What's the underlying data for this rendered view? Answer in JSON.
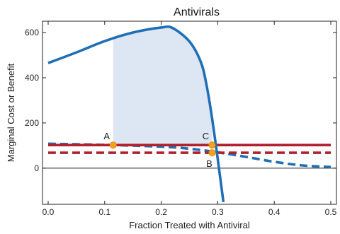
{
  "chart_data": {
    "type": "line",
    "title": "Antivirals",
    "xlabel": "Fraction Treated with Antiviral",
    "ylabel": "Marginal Cost or Benefit",
    "xlim": [
      -0.01,
      0.51
    ],
    "ylim": [
      -160,
      650
    ],
    "xticks": [
      0.0,
      0.1,
      0.2,
      0.3,
      0.4,
      0.5
    ],
    "xtick_labels": [
      "0.0",
      "0.1",
      "0.2",
      "0.3",
      "0.4",
      "0.5"
    ],
    "yticks": [
      0,
      200,
      400,
      600
    ],
    "ytick_labels": [
      "0",
      "200",
      "400",
      "600"
    ],
    "zero_line": true,
    "grid": false,
    "colors": {
      "benefit": "#1f6fb5",
      "cost": "#b0202e",
      "shade": "#dde6f3",
      "point": "#f4a21d",
      "zero_line": "#222222"
    },
    "series": [
      {
        "style": "solid-blue",
        "x": [
          0.0,
          0.05,
          0.1,
          0.15,
          0.2,
          0.22,
          0.25,
          0.27,
          0.28,
          0.29,
          0.3,
          0.31
        ],
        "y": [
          465,
          512,
          562,
          600,
          622,
          620,
          560,
          470,
          370,
          220,
          40,
          -150
        ]
      },
      {
        "style": "dashed-blue",
        "x": [
          0.0,
          0.1,
          0.2,
          0.25,
          0.3,
          0.35,
          0.4,
          0.45,
          0.5
        ],
        "y": [
          108,
          103,
          95,
          86,
          70,
          50,
          28,
          12,
          5
        ]
      },
      {
        "style": "solid-red",
        "x": [
          0.0,
          0.5
        ],
        "y": [
          102,
          102
        ]
      },
      {
        "style": "dashed-red",
        "x": [
          0.0,
          0.5
        ],
        "y": [
          68,
          68
        ]
      }
    ],
    "shaded_region": {
      "x_start": 0.115,
      "x_end": 0.29,
      "lower": 102
    },
    "points": [
      {
        "label": "A",
        "x": 0.115,
        "y": 102
      },
      {
        "label": "C",
        "x": 0.29,
        "y": 102
      },
      {
        "label": "B",
        "x": 0.29,
        "y": 68
      }
    ]
  }
}
